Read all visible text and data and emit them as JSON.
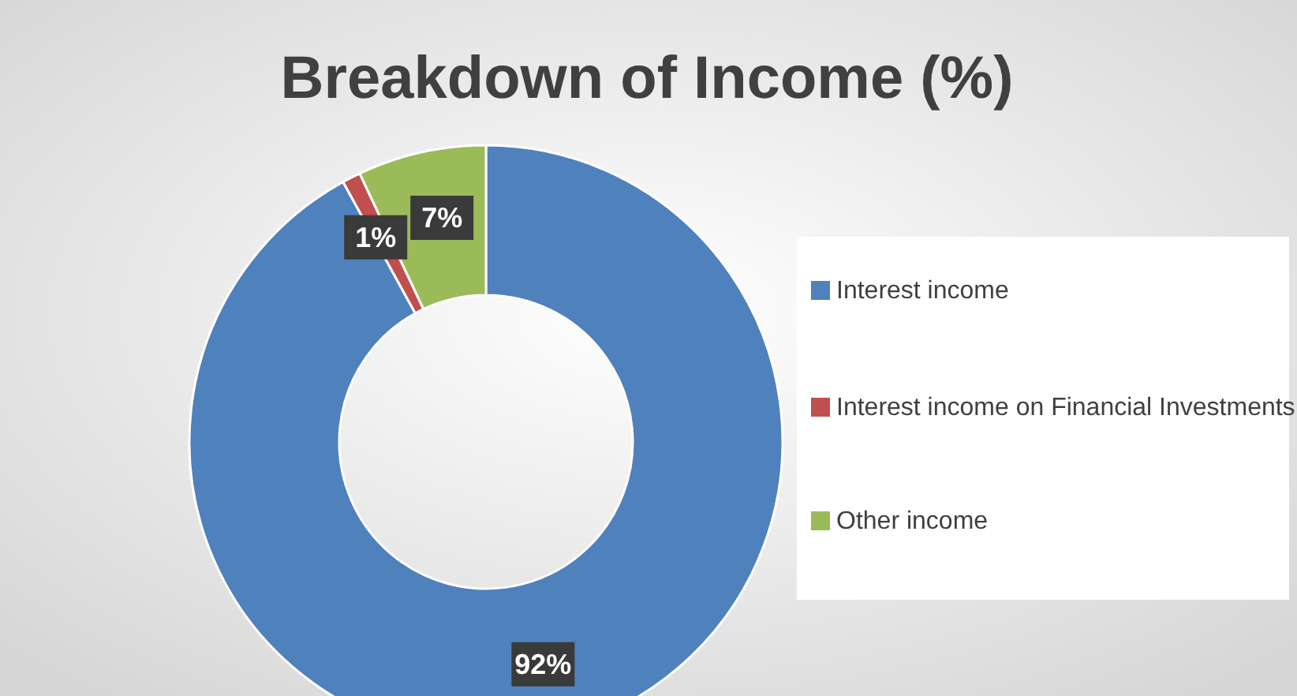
{
  "chart_data": {
    "type": "donut",
    "title": "Breakdown of Income (%)",
    "categories": [
      "Interest income",
      "Interest income on Financial Investments",
      "Other income"
    ],
    "values": [
      92,
      1,
      7
    ],
    "colors": [
      "#4f81bd",
      "#c0504d",
      "#9bbb59"
    ],
    "value_labels": [
      "92%",
      "1%",
      "7%"
    ],
    "legend": "right"
  }
}
